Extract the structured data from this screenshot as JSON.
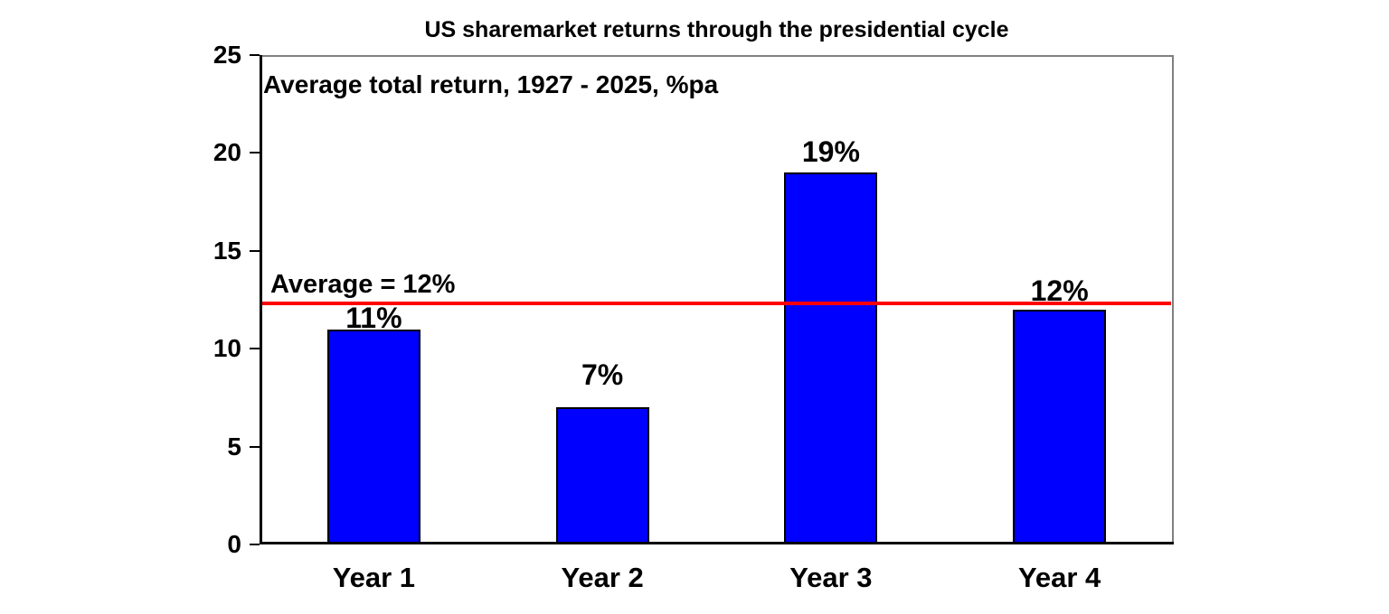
{
  "chart": {
    "title": "US sharemarket returns through the presidential cycle",
    "subtitle": "Average total return, 1927 - 2025, %pa"
  },
  "chart_data": {
    "type": "bar",
    "title": "US sharemarket returns through the presidential cycle",
    "subtitle": "Average total return, 1927 - 2025, %pa",
    "categories": [
      "Year 1",
      "Year 2",
      "Year 3",
      "Year 4"
    ],
    "values": [
      11,
      7,
      19,
      12
    ],
    "bar_labels": [
      "11%",
      "7%",
      "19%",
      "12%"
    ],
    "average_line": {
      "value": 12.3,
      "label": "Average = 12%"
    },
    "xlabel": "",
    "ylabel": "",
    "ylim": [
      0,
      25
    ],
    "yticks": [
      0,
      5,
      10,
      15,
      20,
      25
    ],
    "grid": false,
    "legend": "none",
    "colors": {
      "bar_fill": "#0000ff",
      "bar_border": "#000000",
      "average_line": "#fe0000",
      "text": "#000000",
      "axis": "#000000",
      "plot_border": "#808080",
      "background": "#ffffff"
    }
  }
}
